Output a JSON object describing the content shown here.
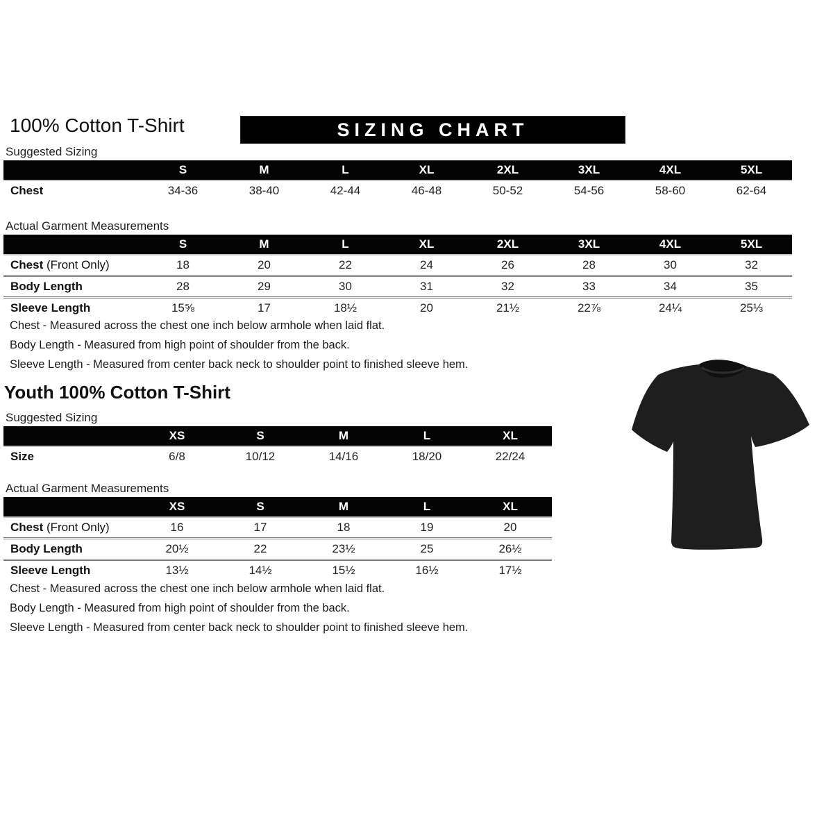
{
  "page": {
    "title": "100% Cotton T-Shirt",
    "banner": "SIZING CHART"
  },
  "colors": {
    "banner_bg": "#000000",
    "banner_text": "#ffffff",
    "table_header_bg": "#040404",
    "tshirt_fill": "#1e1e1e"
  },
  "adult": {
    "suggested_label": "Suggested Sizing",
    "suggested": {
      "columns": [
        "S",
        "M",
        "L",
        "XL",
        "2XL",
        "3XL",
        "4XL",
        "5XL"
      ],
      "rows": [
        {
          "label": "Chest",
          "values": [
            "34-36",
            "38-40",
            "42-44",
            "46-48",
            "50-52",
            "54-56",
            "58-60",
            "62-64"
          ]
        }
      ]
    },
    "actual_label": "Actual Garment Measurements",
    "actual": {
      "columns": [
        "S",
        "M",
        "L",
        "XL",
        "2XL",
        "3XL",
        "4XL",
        "5XL"
      ],
      "rows": [
        {
          "label": "Chest",
          "label_suffix": " (Front Only)",
          "values": [
            "18",
            "20",
            "22",
            "24",
            "26",
            "28",
            "30",
            "32"
          ]
        },
        {
          "label": "Body Length",
          "values": [
            "28",
            "29",
            "30",
            "31",
            "32",
            "33",
            "34",
            "35"
          ]
        },
        {
          "label": "Sleeve Length",
          "values": [
            "15⅝",
            "17",
            "18½",
            "20",
            "21½",
            "22⅞",
            "24¼",
            "25⅓"
          ]
        }
      ]
    },
    "notes": [
      "Chest - Measured across the chest one inch below armhole when laid flat.",
      "Body Length - Measured from high point of shoulder from the back.",
      "Sleeve Length - Measured from center back neck to shoulder point to finished sleeve hem."
    ]
  },
  "youth": {
    "title": "Youth 100% Cotton T-Shirt",
    "suggested_label": "Suggested Sizing",
    "suggested": {
      "columns": [
        "XS",
        "S",
        "M",
        "L",
        "XL"
      ],
      "rows": [
        {
          "label": "Size",
          "values": [
            "6/8",
            "10/12",
            "14/16",
            "18/20",
            "22/24"
          ]
        }
      ]
    },
    "actual_label": "Actual Garment Measurements",
    "actual": {
      "columns": [
        "XS",
        "S",
        "M",
        "L",
        "XL"
      ],
      "rows": [
        {
          "label": "Chest",
          "label_suffix": " (Front Only)",
          "values": [
            "16",
            "17",
            "18",
            "19",
            "20"
          ]
        },
        {
          "label": "Body Length",
          "values": [
            "20½",
            "22",
            "23½",
            "25",
            "26½"
          ]
        },
        {
          "label": "Sleeve Length",
          "values": [
            "13½",
            "14½",
            "15½",
            "16½",
            "17½"
          ]
        }
      ]
    },
    "notes": [
      "Chest - Measured across the chest one inch below armhole when laid flat.",
      "Body Length - Measured from high point of shoulder from the back.",
      "Sleeve Length - Measured from center back neck to shoulder point to finished sleeve hem."
    ]
  }
}
